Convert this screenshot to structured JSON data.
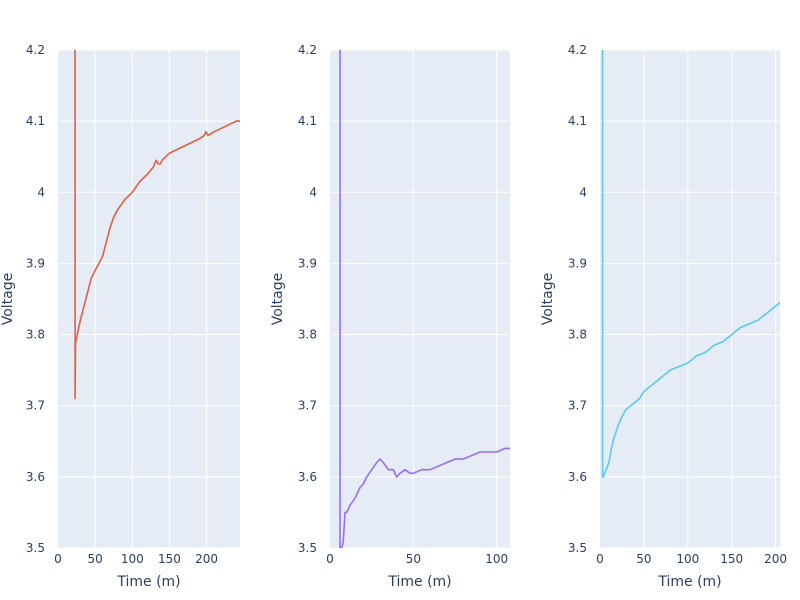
{
  "chart_data": [
    {
      "type": "line",
      "xlabel": "Time (m)",
      "ylabel": "Voltage",
      "xlim": [
        0,
        245
      ],
      "ylim": [
        3.5,
        4.2
      ],
      "xticks": [
        0,
        50,
        100,
        150,
        200
      ],
      "yticks": [
        3.5,
        3.6,
        3.7,
        3.8,
        3.9,
        4.0,
        4.1,
        4.2
      ],
      "ytick_labels": [
        "3.5",
        "3.6",
        "3.7",
        "3.8",
        "3.9",
        "4",
        "4.1",
        "4.2"
      ],
      "grid": true,
      "color": "#e15f41",
      "series": [
        {
          "x": [
            23,
            23,
            23.5,
            24,
            26,
            30,
            35,
            40,
            45,
            50,
            55,
            60,
            65,
            70,
            75,
            80,
            90,
            100,
            110,
            120,
            128,
            132,
            135,
            138,
            140,
            145,
            150,
            160,
            170,
            180,
            190,
            197,
            199,
            202,
            210,
            220,
            230,
            240,
            245
          ],
          "y": [
            4.2,
            3.71,
            3.79,
            3.79,
            3.8,
            3.82,
            3.84,
            3.86,
            3.88,
            3.89,
            3.9,
            3.91,
            3.93,
            3.95,
            3.965,
            3.975,
            3.99,
            4.0,
            4.015,
            4.025,
            4.035,
            4.045,
            4.04,
            4.04,
            4.045,
            4.05,
            4.055,
            4.06,
            4.065,
            4.07,
            4.075,
            4.08,
            4.085,
            4.08,
            4.085,
            4.09,
            4.095,
            4.1,
            4.1
          ]
        }
      ]
    },
    {
      "type": "line",
      "xlabel": "Time (m)",
      "ylabel": "Voltage",
      "xlim": [
        0,
        108
      ],
      "ylim": [
        3.5,
        4.2
      ],
      "xticks": [
        0,
        50,
        100
      ],
      "yticks": [
        3.5,
        3.6,
        3.7,
        3.8,
        3.9,
        4.0,
        4.1,
        4.2
      ],
      "ytick_labels": [
        "3.5",
        "3.6",
        "3.7",
        "3.8",
        "3.9",
        "4",
        "4.1",
        "4.2"
      ],
      "grid": true,
      "color": "#9b6cf0",
      "series": [
        {
          "x": [
            6,
            6,
            7,
            8,
            9,
            10,
            12,
            15,
            18,
            20,
            22,
            25,
            28,
            30,
            32,
            35,
            38,
            40,
            42,
            45,
            48,
            50,
            55,
            60,
            65,
            70,
            75,
            80,
            85,
            90,
            95,
            100,
            105,
            108
          ],
          "y": [
            4.2,
            3.5,
            3.5,
            3.51,
            3.55,
            3.55,
            3.56,
            3.57,
            3.585,
            3.59,
            3.6,
            3.61,
            3.62,
            3.625,
            3.62,
            3.61,
            3.61,
            3.6,
            3.605,
            3.61,
            3.605,
            3.605,
            3.61,
            3.61,
            3.615,
            3.62,
            3.625,
            3.625,
            3.63,
            3.635,
            3.635,
            3.635,
            3.64,
            3.64
          ]
        }
      ]
    },
    {
      "type": "line",
      "xlabel": "Time (m)",
      "ylabel": "Voltage",
      "xlim": [
        0,
        205
      ],
      "ylim": [
        3.5,
        4.2
      ],
      "xticks": [
        0,
        50,
        100,
        150,
        200
      ],
      "yticks": [
        3.5,
        3.6,
        3.7,
        3.8,
        3.9,
        4.0,
        4.1,
        4.2
      ],
      "ytick_labels": [
        "3.5",
        "3.6",
        "3.7",
        "3.8",
        "3.9",
        "4",
        "4.1",
        "4.2"
      ],
      "grid": true,
      "color": "#5bc8ec",
      "series": [
        {
          "x": [
            3,
            3,
            4,
            5,
            7,
            10,
            13,
            16,
            20,
            25,
            30,
            35,
            40,
            45,
            50,
            60,
            70,
            80,
            90,
            100,
            110,
            120,
            130,
            140,
            150,
            160,
            170,
            180,
            190,
            200,
            205
          ],
          "y": [
            4.2,
            3.6,
            3.6,
            3.605,
            3.61,
            3.62,
            3.64,
            3.655,
            3.67,
            3.685,
            3.695,
            3.7,
            3.705,
            3.71,
            3.72,
            3.73,
            3.74,
            3.75,
            3.755,
            3.76,
            3.77,
            3.775,
            3.785,
            3.79,
            3.8,
            3.81,
            3.815,
            3.82,
            3.83,
            3.84,
            3.845
          ]
        }
      ]
    }
  ]
}
